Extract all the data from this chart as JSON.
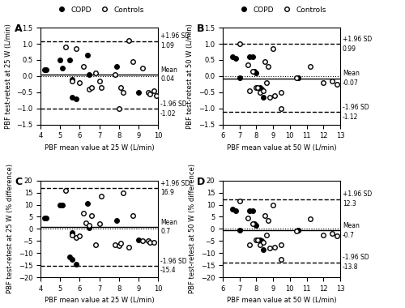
{
  "panel_A": {
    "label": "A",
    "xlim": [
      4,
      10
    ],
    "ylim": [
      -1.5,
      1.5
    ],
    "xticks": [
      4,
      5,
      6,
      7,
      8,
      9,
      10
    ],
    "yticks": [
      -1.5,
      -1.0,
      -0.5,
      0.0,
      0.5,
      1.0,
      1.5
    ],
    "xlabel": "PBF mean value at 25 W (L/min)",
    "ylabel": "PBF test-retest at 25 W (L/min)",
    "mean": 0.04,
    "upper_loa": 1.09,
    "lower_loa": -1.02,
    "copd_x": [
      4.2,
      4.3,
      5.0,
      5.1,
      5.5,
      5.6,
      5.6,
      5.8,
      6.4,
      6.5,
      7.9,
      9.0
    ],
    "copd_y": [
      0.2,
      0.2,
      0.5,
      0.25,
      0.5,
      -0.1,
      -0.65,
      -0.7,
      0.65,
      0.05,
      0.3,
      -0.5
    ],
    "ctrl_x": [
      5.3,
      5.6,
      5.8,
      6.0,
      6.2,
      6.5,
      6.6,
      6.8,
      7.0,
      7.1,
      7.8,
      8.0,
      8.1,
      8.2,
      8.5,
      8.7,
      9.2,
      9.5,
      9.6,
      9.8,
      9.9
    ],
    "ctrl_y": [
      0.9,
      -0.15,
      0.85,
      -0.2,
      0.3,
      -0.4,
      -0.35,
      0.1,
      -0.15,
      -0.35,
      0.05,
      -1.0,
      -0.35,
      -0.5,
      1.1,
      0.45,
      0.25,
      -0.5,
      -0.55,
      -0.45,
      -0.6
    ]
  },
  "panel_B": {
    "label": "B",
    "xlim": [
      6,
      13
    ],
    "ylim": [
      -1.5,
      1.5
    ],
    "xticks": [
      6,
      7,
      8,
      9,
      10,
      11,
      12,
      13
    ],
    "yticks": [
      -1.5,
      -1.0,
      -0.5,
      0.0,
      0.5,
      1.0,
      1.5
    ],
    "xlabel": "PBF mean value at 50 W (L/min)",
    "ylabel": "PBF test-retest at 50 W (L/min)",
    "mean": -0.07,
    "upper_loa": 0.99,
    "lower_loa": -1.12,
    "copd_x": [
      6.6,
      6.8,
      7.0,
      7.6,
      7.8,
      7.9,
      8.0,
      8.2,
      8.3,
      8.4,
      10.5,
      10.5
    ],
    "copd_y": [
      0.6,
      0.55,
      -0.05,
      0.6,
      0.6,
      0.15,
      0.1,
      -0.35,
      -0.4,
      -0.65,
      -0.05,
      -0.05
    ],
    "ctrl_x": [
      7.0,
      7.5,
      7.6,
      7.8,
      8.0,
      8.1,
      8.2,
      8.4,
      8.5,
      8.6,
      8.7,
      8.8,
      9.0,
      9.1,
      9.5,
      9.5,
      10.4,
      11.2,
      12.0,
      12.5,
      12.8
    ],
    "ctrl_y": [
      1.0,
      0.35,
      -0.45,
      0.15,
      -0.35,
      -0.35,
      -0.5,
      -0.45,
      0.45,
      -0.2,
      0.3,
      -0.65,
      0.85,
      -0.6,
      -0.5,
      -1.0,
      -0.05,
      0.3,
      -0.2,
      -0.15,
      -0.25
    ]
  },
  "panel_C": {
    "label": "C",
    "xlim": [
      4,
      10
    ],
    "ylim": [
      -20,
      20
    ],
    "xticks": [
      4,
      5,
      6,
      7,
      8,
      9,
      10
    ],
    "yticks": [
      -20,
      -15,
      -10,
      -5,
      0,
      5,
      10,
      15,
      20
    ],
    "xlabel": "PBF mean value at 25 W (L/min)",
    "ylabel": "PBF test-retest at 25 W (% difference)",
    "mean": 0.7,
    "upper_loa": 16.9,
    "lower_loa": -15.4,
    "copd_x": [
      4.2,
      4.3,
      5.0,
      5.1,
      5.5,
      5.6,
      5.6,
      5.8,
      6.4,
      6.5,
      7.9,
      9.0
    ],
    "copd_y": [
      4.5,
      4.5,
      10.0,
      10.0,
      -11.5,
      -1.5,
      -12.5,
      -14.5,
      10.5,
      0.5,
      3.5,
      -4.5
    ],
    "ctrl_x": [
      5.3,
      5.6,
      5.8,
      6.0,
      6.2,
      6.3,
      6.5,
      6.6,
      6.8,
      7.0,
      7.1,
      7.8,
      8.0,
      8.1,
      8.2,
      8.5,
      8.7,
      9.2,
      9.5,
      9.6,
      9.8
    ],
    "ctrl_y": [
      16.0,
      -2.5,
      -3.5,
      -3.0,
      6.5,
      2.5,
      1.5,
      5.5,
      -6.5,
      2.0,
      13.5,
      -6.5,
      -7.0,
      -6.0,
      15.0,
      -7.5,
      5.5,
      -5.0,
      -5.0,
      -5.5,
      -5.5
    ]
  },
  "panel_D": {
    "label": "D",
    "xlim": [
      6,
      13
    ],
    "ylim": [
      -20,
      20
    ],
    "xticks": [
      6,
      7,
      8,
      9,
      10,
      11,
      12,
      13
    ],
    "yticks": [
      -20,
      -15,
      -10,
      -5,
      0,
      5,
      10,
      15,
      20
    ],
    "xlabel": "PBF mean value at 50 W (L/min)",
    "ylabel": "PBF test-retest at 50 W (% difference)",
    "mean": -0.7,
    "upper_loa": 12.3,
    "lower_loa": -13.8,
    "copd_x": [
      6.6,
      6.8,
      7.0,
      7.6,
      7.8,
      7.9,
      8.0,
      8.2,
      8.3,
      8.4,
      10.5,
      10.5
    ],
    "copd_y": [
      8.0,
      7.5,
      -0.5,
      7.5,
      7.5,
      2.0,
      1.5,
      -4.5,
      -5.0,
      -8.5,
      -0.5,
      -0.5
    ],
    "ctrl_x": [
      7.0,
      7.5,
      7.6,
      7.8,
      8.0,
      8.1,
      8.2,
      8.4,
      8.5,
      8.6,
      8.7,
      8.8,
      9.0,
      9.1,
      9.5,
      9.5,
      10.4,
      11.2,
      12.0,
      12.5,
      12.8
    ],
    "ctrl_y": [
      11.5,
      4.5,
      -6.5,
      2.0,
      -4.5,
      -4.5,
      -6.5,
      -5.5,
      5.5,
      -2.5,
      3.5,
      -8.0,
      10.0,
      -7.5,
      -6.5,
      -12.5,
      -1.0,
      4.0,
      -2.5,
      -2.0,
      -3.0
    ]
  },
  "legend_label_copd": "COPD",
  "legend_label_ctrl": "Controls",
  "copd_color": "black",
  "copd_facecolor": "black",
  "ctrl_color": "black",
  "ctrl_facecolor": "white",
  "markersize": 4,
  "annot_fontsize": 5.5,
  "tick_fontsize": 6,
  "label_fontsize": 6
}
